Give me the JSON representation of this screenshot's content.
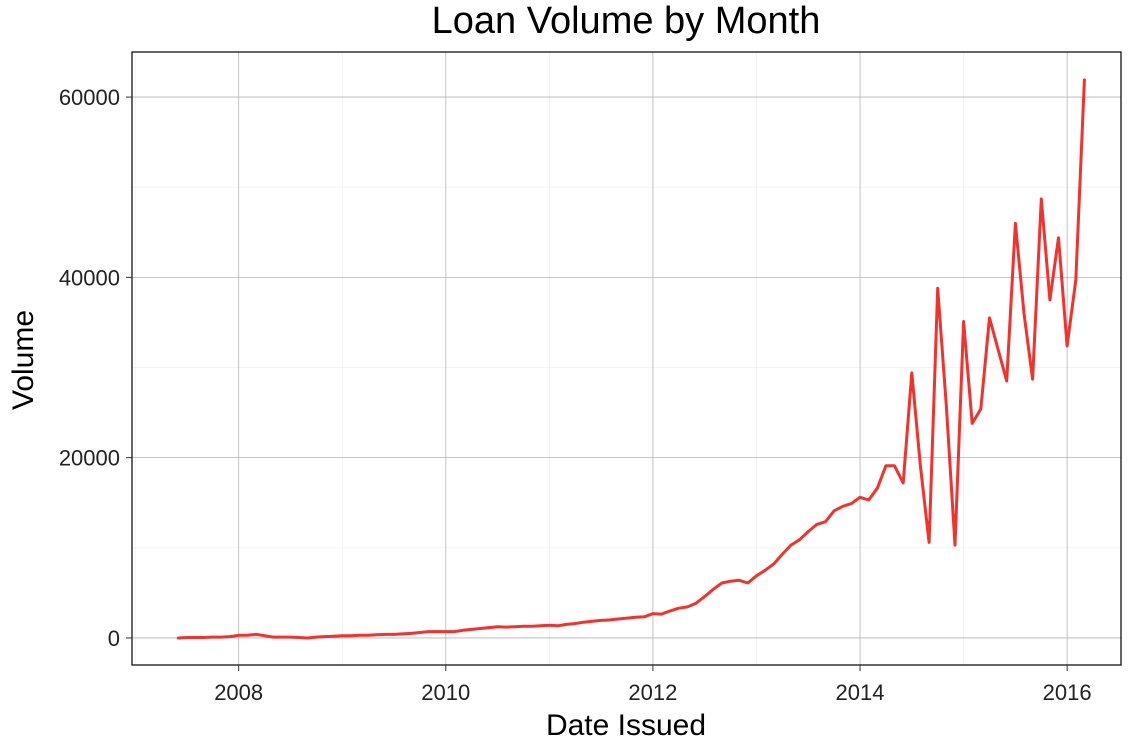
{
  "chart_data": {
    "type": "line",
    "title": "Loan Volume by Month",
    "xlabel": "Date Issued",
    "ylabel": "Volume",
    "xlim": [
      2006.97,
      2016.52
    ],
    "ylim": [
      -3000,
      65000
    ],
    "x_ticks": [
      2008,
      2010,
      2012,
      2014,
      2016
    ],
    "x_tick_labels": [
      "2008",
      "2010",
      "2012",
      "2014",
      "2016"
    ],
    "y_ticks": [
      0,
      20000,
      40000,
      60000
    ],
    "y_tick_labels": [
      "0",
      "20000",
      "40000",
      "60000"
    ],
    "grid": true,
    "line_color": "#f2322c",
    "series": [
      {
        "x": [
          "2007-06",
          "2007-07",
          "2007-08",
          "2007-09",
          "2007-10",
          "2007-11",
          "2007-12",
          "2008-01",
          "2008-02",
          "2008-03",
          "2008-04",
          "2008-05",
          "2008-06",
          "2008-07",
          "2008-08",
          "2008-09",
          "2008-10",
          "2008-11",
          "2008-12",
          "2009-01",
          "2009-02",
          "2009-03",
          "2009-04",
          "2009-05",
          "2009-06",
          "2009-07",
          "2009-08",
          "2009-09",
          "2009-10",
          "2009-11",
          "2009-12",
          "2010-01",
          "2010-02",
          "2010-03",
          "2010-04",
          "2010-05",
          "2010-06",
          "2010-07",
          "2010-08",
          "2010-09",
          "2010-10",
          "2010-11",
          "2010-12",
          "2011-01",
          "2011-02",
          "2011-03",
          "2011-04",
          "2011-05",
          "2011-06",
          "2011-07",
          "2011-08",
          "2011-09",
          "2011-10",
          "2011-11",
          "2011-12",
          "2012-01",
          "2012-02",
          "2012-03",
          "2012-04",
          "2012-05",
          "2012-06",
          "2012-07",
          "2012-08",
          "2012-09",
          "2012-10",
          "2012-11",
          "2012-12",
          "2013-01",
          "2013-02",
          "2013-03",
          "2013-04",
          "2013-05",
          "2013-06",
          "2013-07",
          "2013-08",
          "2013-09",
          "2013-10",
          "2013-11",
          "2013-12",
          "2014-01",
          "2014-02",
          "2014-03",
          "2014-04",
          "2014-05",
          "2014-06",
          "2014-07",
          "2014-08",
          "2014-09",
          "2014-10",
          "2014-11",
          "2014-12",
          "2015-01",
          "2015-02",
          "2015-03",
          "2015-04",
          "2015-05",
          "2015-06",
          "2015-07",
          "2015-08",
          "2015-09",
          "2015-10",
          "2015-11",
          "2015-12",
          "2016-01",
          "2016-02",
          "2016-03"
        ],
        "y": [
          0,
          50,
          50,
          50,
          100,
          100,
          150,
          300,
          300,
          400,
          250,
          100,
          100,
          100,
          50,
          0,
          100,
          150,
          200,
          250,
          250,
          300,
          300,
          350,
          400,
          400,
          450,
          500,
          600,
          700,
          700,
          700,
          700,
          850,
          950,
          1050,
          1150,
          1250,
          1200,
          1250,
          1300,
          1300,
          1350,
          1400,
          1350,
          1500,
          1600,
          1750,
          1850,
          1950,
          2000,
          2100,
          2200,
          2300,
          2350,
          2700,
          2650,
          3000,
          3300,
          3450,
          3850,
          4600,
          5400,
          6100,
          6300,
          6400,
          6100,
          6900,
          7500,
          8200,
          9300,
          10300,
          10900,
          11800,
          12600,
          12900,
          14100,
          14600,
          14900,
          15600,
          15300,
          16600,
          19100,
          19100,
          17200,
          29400,
          19100,
          10600,
          38800,
          25800,
          10300,
          35100,
          23800,
          25400,
          35500,
          32000,
          28500,
          46000,
          36000,
          28700,
          48700,
          37500,
          44400,
          32400,
          39700,
          61900
        ]
      }
    ]
  }
}
